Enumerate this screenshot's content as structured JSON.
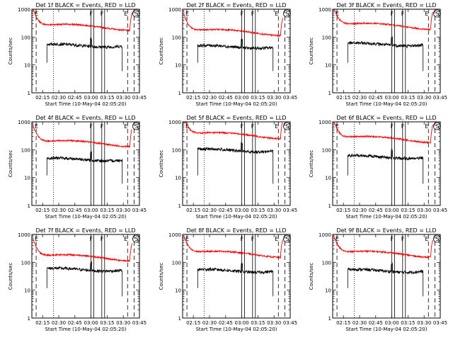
{
  "chart_data": {
    "type": "line",
    "layout": "3x3 grid",
    "y_scale": "log",
    "ylim": [
      1,
      1000
    ],
    "xlim": [
      "02:05",
      "03:45"
    ],
    "ylabel": "Counts/sec",
    "xlabel": "Start Time (10-May-04 02:05:20)",
    "x_ticks": [
      "02:15",
      "02:30",
      "02:45",
      "03:00",
      "03:15",
      "03:30",
      "03:45"
    ],
    "y_ticks": [
      "1",
      "10",
      "100",
      "1000"
    ],
    "colors": {
      "events": "#000000",
      "lld": "#ff0000"
    },
    "legend": [
      "BLACK = Events",
      "RED = LLD"
    ],
    "panels": [
      {
        "title": "Det 1f BLACK = Events, RED = LLD",
        "detector": 1,
        "lld_level": 230,
        "events_level": 50,
        "vlines_dashed": [
          "02:09",
          "03:34",
          "03:40"
        ],
        "vline_dotted": "02:25",
        "markers": [
          {
            "label": "E",
            "time": "02:07"
          },
          {
            "label": "F",
            "time": "03:00"
          },
          {
            "label": "F",
            "time": "03:10"
          },
          {
            "label": "E",
            "time": "03:30"
          },
          {
            "label": "S",
            "time": "03:40"
          }
        ]
      },
      {
        "title": "Det 2f BLACK = Events, RED = LLD",
        "detector": 2,
        "lld_level": 150,
        "events_level": 45,
        "vlines_dashed": [
          "02:09",
          "03:34",
          "03:40"
        ],
        "vline_dotted": "02:25",
        "markers": [
          {
            "label": "E",
            "time": "02:07"
          },
          {
            "label": "F",
            "time": "03:00"
          },
          {
            "label": "F",
            "time": "03:10"
          },
          {
            "label": "E",
            "time": "03:30"
          },
          {
            "label": "S",
            "time": "03:40"
          }
        ]
      },
      {
        "title": "Det 3f BLACK = Events, RED = LLD",
        "detector": 3,
        "lld_level": 250,
        "events_level": 55,
        "vlines_dashed": [
          "02:09",
          "03:34",
          "03:40"
        ],
        "vline_dotted": "02:25",
        "markers": [
          {
            "label": "E",
            "time": "02:07"
          },
          {
            "label": "F",
            "time": "03:00"
          },
          {
            "label": "F",
            "time": "03:10"
          },
          {
            "label": "E",
            "time": "03:30"
          },
          {
            "label": "S",
            "time": "03:40"
          }
        ]
      },
      {
        "title": "Det 4f BLACK = Events, RED = LLD",
        "detector": 4,
        "lld_level": 170,
        "events_level": 45,
        "vlines_dashed": [
          "02:09",
          "03:34",
          "03:40"
        ],
        "vline_dotted": "02:25",
        "markers": [
          {
            "label": "E",
            "time": "02:07"
          },
          {
            "label": "F",
            "time": "03:00"
          },
          {
            "label": "F",
            "time": "03:10"
          },
          {
            "label": "E",
            "time": "03:30"
          },
          {
            "label": "S",
            "time": "03:40"
          }
        ]
      },
      {
        "title": "Det 5f BLACK = Events, RED = LLD",
        "detector": 5,
        "lld_level": 330,
        "events_level": 95,
        "vlines_dashed": [
          "02:09",
          "03:34",
          "03:40"
        ],
        "vline_dotted": "02:25",
        "markers": [
          {
            "label": "E",
            "time": "02:07"
          },
          {
            "label": "F",
            "time": "03:00"
          },
          {
            "label": "F",
            "time": "03:10"
          },
          {
            "label": "E",
            "time": "03:30"
          },
          {
            "label": "S",
            "time": "03:40"
          }
        ]
      },
      {
        "title": "Det 6f BLACK = Events, RED = LLD",
        "detector": 6,
        "lld_level": 240,
        "events_level": 55,
        "vlines_dashed": [
          "02:09",
          "03:34",
          "03:40"
        ],
        "vline_dotted": "02:25",
        "markers": [
          {
            "label": "E",
            "time": "02:07"
          },
          {
            "label": "F",
            "time": "03:00"
          },
          {
            "label": "F",
            "time": "03:10"
          },
          {
            "label": "E",
            "time": "03:30"
          },
          {
            "label": "S",
            "time": "03:40"
          }
        ]
      },
      {
        "title": "Det 7f BLACK = Events, RED = LLD",
        "detector": 7,
        "lld_level": 150,
        "events_level": 55,
        "vlines_dashed": [
          "02:09",
          "03:34",
          "03:40"
        ],
        "vline_dotted": "02:25",
        "markers": [
          {
            "label": "E",
            "time": "02:07"
          },
          {
            "label": "F",
            "time": "03:00"
          },
          {
            "label": "F",
            "time": "03:10"
          },
          {
            "label": "E",
            "time": "03:30"
          },
          {
            "label": "S",
            "time": "03:40"
          }
        ]
      },
      {
        "title": "Det 8f BLACK = Events, RED = LLD",
        "detector": 8,
        "lld_level": 200,
        "events_level": 50,
        "vlines_dashed": [
          "02:09",
          "03:34",
          "03:40"
        ],
        "vline_dotted": "02:25",
        "markers": [
          {
            "label": "E",
            "time": "02:07"
          },
          {
            "label": "F",
            "time": "03:00"
          },
          {
            "label": "F",
            "time": "03:10"
          },
          {
            "label": "E",
            "time": "03:30"
          },
          {
            "label": "S",
            "time": "03:40"
          }
        ]
      },
      {
        "title": "Det 9f BLACK = Events, RED = LLD",
        "detector": 9,
        "lld_level": 200,
        "events_level": 50,
        "vlines_dashed": [
          "02:09",
          "03:34",
          "03:40"
        ],
        "vline_dotted": "02:25",
        "markers": [
          {
            "label": "E",
            "time": "02:07"
          },
          {
            "label": "F",
            "time": "03:00"
          },
          {
            "label": "F",
            "time": "03:10"
          },
          {
            "label": "E",
            "time": "03:30"
          },
          {
            "label": "S",
            "time": "03:40"
          }
        ]
      }
    ]
  }
}
